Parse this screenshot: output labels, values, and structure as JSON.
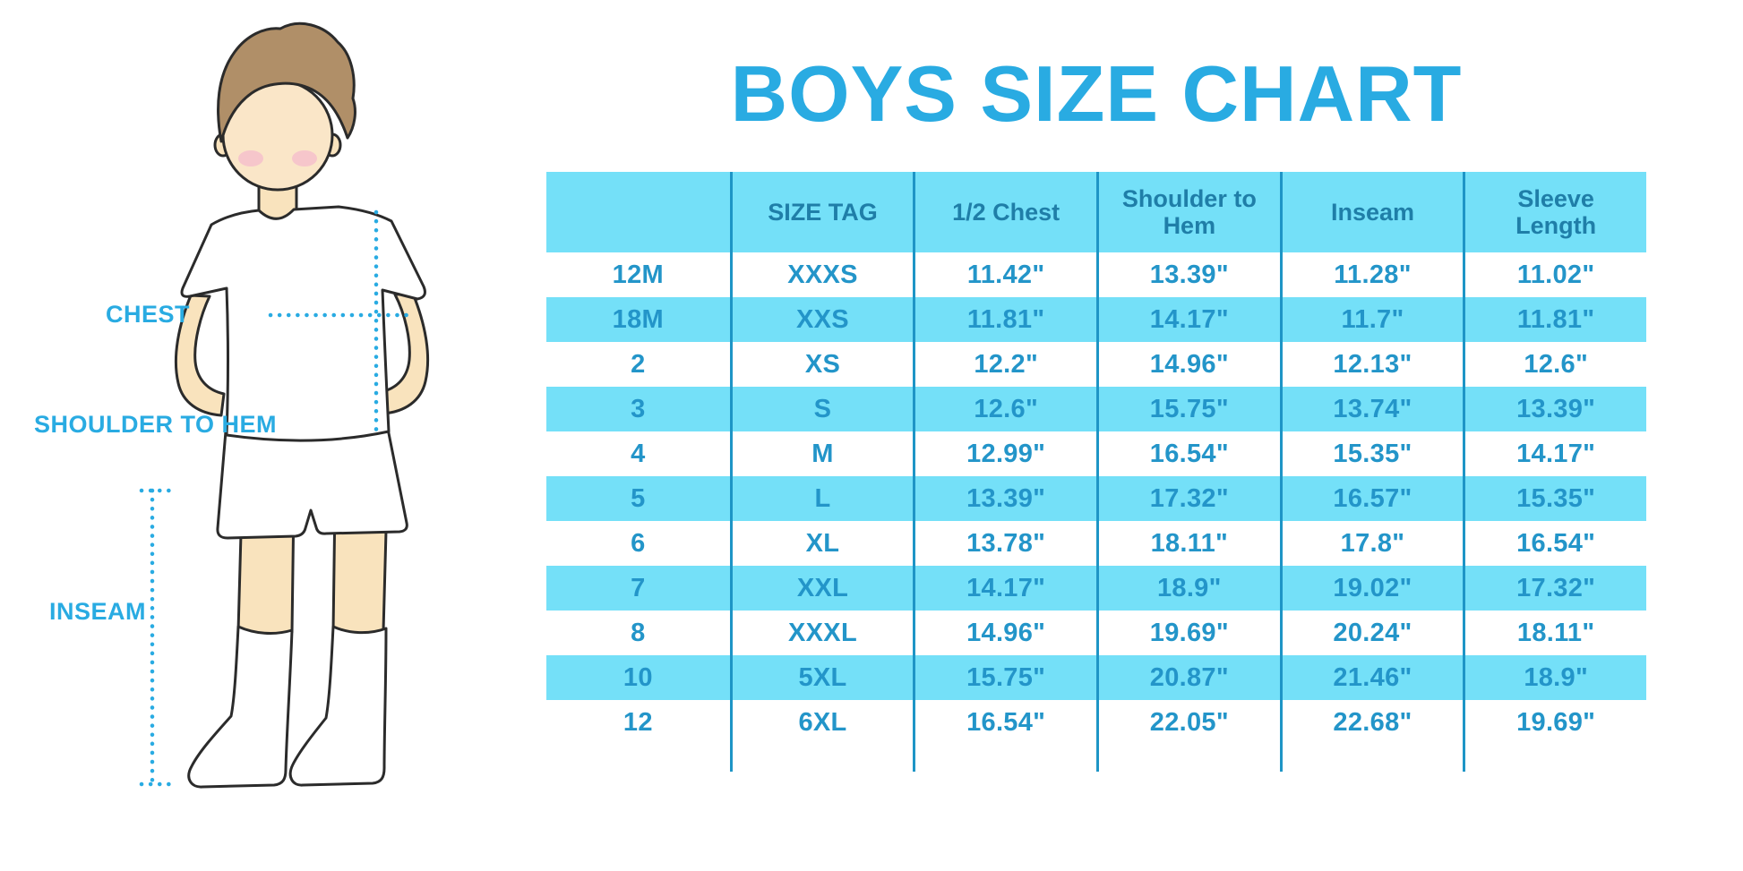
{
  "title": "BOYS SIZE CHART",
  "illustration": {
    "description": "cartoon boy in white t-shirt, shorts and knee socks with hands behind back",
    "labels": {
      "chest": "CHEST",
      "shoulder_to_hem": "SHOULDER TO HEM",
      "inseam": "INSEAM"
    }
  },
  "colors": {
    "accent_blue": "#29ABE2",
    "table_stripe_bg": "#74E0F8",
    "header_text": "#1F7EA8",
    "cell_text": "#2395C9",
    "column_line": "#1E95C6",
    "skin": "#F9E3BD",
    "hair": "#B08F68",
    "blush": "#F6C3CC"
  },
  "chart_data": {
    "type": "table",
    "title": "BOYS SIZE CHART",
    "columns": [
      "",
      "SIZE TAG",
      "1/2 Chest",
      "Shoulder to Hem",
      "Inseam",
      "Sleeve Length"
    ],
    "rows": [
      [
        "12M",
        "XXXS",
        "11.42\"",
        "13.39\"",
        "11.28\"",
        "11.02\""
      ],
      [
        "18M",
        "XXS",
        "11.81\"",
        "14.17\"",
        "11.7\"",
        "11.81\""
      ],
      [
        "2",
        "XS",
        "12.2\"",
        "14.96\"",
        "12.13\"",
        "12.6\""
      ],
      [
        "3",
        "S",
        "12.6\"",
        "15.75\"",
        "13.74\"",
        "13.39\""
      ],
      [
        "4",
        "M",
        "12.99\"",
        "16.54\"",
        "15.35\"",
        "14.17\""
      ],
      [
        "5",
        "L",
        "13.39\"",
        "17.32\"",
        "16.57\"",
        "15.35\""
      ],
      [
        "6",
        "XL",
        "13.78\"",
        "18.11\"",
        "17.8\"",
        "16.54\""
      ],
      [
        "7",
        "XXL",
        "14.17\"",
        "18.9\"",
        "19.02\"",
        "17.32\""
      ],
      [
        "8",
        "XXXL",
        "14.96\"",
        "19.69\"",
        "20.24\"",
        "18.11\""
      ],
      [
        "10",
        "5XL",
        "15.75\"",
        "20.87\"",
        "21.46\"",
        "18.9\""
      ],
      [
        "12",
        "6XL",
        "16.54\"",
        "22.05\"",
        "22.68\"",
        "19.69\""
      ]
    ]
  }
}
